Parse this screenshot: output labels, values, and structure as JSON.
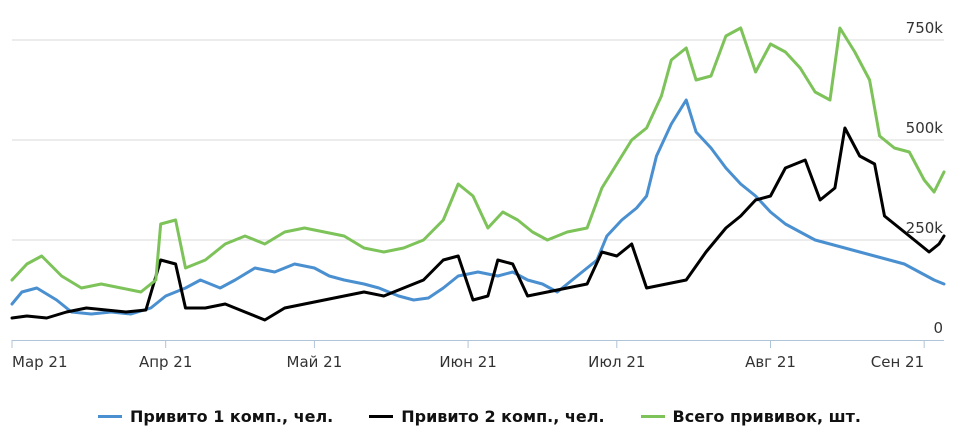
{
  "chart_data": {
    "type": "line",
    "title": "",
    "xlabel": "",
    "ylabel": "",
    "y_ticks": [
      {
        "value": 0,
        "label": "0"
      },
      {
        "value": 250000,
        "label": "250k"
      },
      {
        "value": 500000,
        "label": "500k"
      },
      {
        "value": 750000,
        "label": "750k"
      }
    ],
    "ylim": [
      0,
      800000
    ],
    "xlim": [
      "2021-03-01",
      "2021-09-05"
    ],
    "x_ticks": [
      {
        "date": "2021-03-01",
        "label": "Мар 21"
      },
      {
        "date": "2021-04-01",
        "label": "Апр 21"
      },
      {
        "date": "2021-05-01",
        "label": "Май 21"
      },
      {
        "date": "2021-06-01",
        "label": "Июн 21"
      },
      {
        "date": "2021-07-01",
        "label": "Июл 21"
      },
      {
        "date": "2021-08-01",
        "label": "Авг 21"
      },
      {
        "date": "2021-09-01",
        "label": "Сен 21"
      }
    ],
    "grid": true,
    "legend_position": "bottom",
    "series": [
      {
        "name": "Привито 1 комп., чел.",
        "color": "#4a90d0",
        "points": [
          [
            "2021-03-01",
            90000
          ],
          [
            "2021-03-03",
            120000
          ],
          [
            "2021-03-06",
            130000
          ],
          [
            "2021-03-10",
            100000
          ],
          [
            "2021-03-13",
            70000
          ],
          [
            "2021-03-17",
            65000
          ],
          [
            "2021-03-21",
            70000
          ],
          [
            "2021-03-25",
            65000
          ],
          [
            "2021-03-29",
            80000
          ],
          [
            "2021-04-01",
            110000
          ],
          [
            "2021-04-05",
            130000
          ],
          [
            "2021-04-08",
            150000
          ],
          [
            "2021-04-12",
            130000
          ],
          [
            "2021-04-15",
            150000
          ],
          [
            "2021-04-19",
            180000
          ],
          [
            "2021-04-23",
            170000
          ],
          [
            "2021-04-27",
            190000
          ],
          [
            "2021-05-01",
            180000
          ],
          [
            "2021-05-04",
            160000
          ],
          [
            "2021-05-07",
            150000
          ],
          [
            "2021-05-11",
            140000
          ],
          [
            "2021-05-14",
            130000
          ],
          [
            "2021-05-18",
            110000
          ],
          [
            "2021-05-21",
            100000
          ],
          [
            "2021-05-24",
            105000
          ],
          [
            "2021-05-27",
            130000
          ],
          [
            "2021-05-30",
            160000
          ],
          [
            "2021-06-03",
            170000
          ],
          [
            "2021-06-07",
            160000
          ],
          [
            "2021-06-10",
            170000
          ],
          [
            "2021-06-13",
            150000
          ],
          [
            "2021-06-16",
            140000
          ],
          [
            "2021-06-19",
            120000
          ],
          [
            "2021-06-22",
            150000
          ],
          [
            "2021-06-25",
            180000
          ],
          [
            "2021-06-27",
            200000
          ],
          [
            "2021-06-29",
            260000
          ],
          [
            "2021-07-02",
            300000
          ],
          [
            "2021-07-05",
            330000
          ],
          [
            "2021-07-07",
            360000
          ],
          [
            "2021-07-09",
            460000
          ],
          [
            "2021-07-12",
            540000
          ],
          [
            "2021-07-15",
            600000
          ],
          [
            "2021-07-17",
            520000
          ],
          [
            "2021-07-20",
            480000
          ],
          [
            "2021-07-23",
            430000
          ],
          [
            "2021-07-26",
            390000
          ],
          [
            "2021-07-29",
            360000
          ],
          [
            "2021-08-01",
            320000
          ],
          [
            "2021-08-04",
            290000
          ],
          [
            "2021-08-07",
            270000
          ],
          [
            "2021-08-10",
            250000
          ],
          [
            "2021-08-13",
            240000
          ],
          [
            "2021-08-16",
            230000
          ],
          [
            "2021-08-19",
            220000
          ],
          [
            "2021-08-22",
            210000
          ],
          [
            "2021-08-25",
            200000
          ],
          [
            "2021-08-28",
            190000
          ],
          [
            "2021-08-31",
            170000
          ],
          [
            "2021-09-03",
            150000
          ],
          [
            "2021-09-05",
            140000
          ]
        ]
      },
      {
        "name": "Привито 2 комп., чел.",
        "color": "#000000",
        "points": [
          [
            "2021-03-01",
            55000
          ],
          [
            "2021-03-04",
            60000
          ],
          [
            "2021-03-08",
            55000
          ],
          [
            "2021-03-12",
            70000
          ],
          [
            "2021-03-16",
            80000
          ],
          [
            "2021-03-20",
            75000
          ],
          [
            "2021-03-24",
            70000
          ],
          [
            "2021-03-28",
            75000
          ],
          [
            "2021-03-31",
            200000
          ],
          [
            "2021-04-03",
            190000
          ],
          [
            "2021-04-05",
            80000
          ],
          [
            "2021-04-09",
            80000
          ],
          [
            "2021-04-13",
            90000
          ],
          [
            "2021-04-17",
            70000
          ],
          [
            "2021-04-21",
            50000
          ],
          [
            "2021-04-25",
            80000
          ],
          [
            "2021-04-29",
            90000
          ],
          [
            "2021-05-03",
            100000
          ],
          [
            "2021-05-07",
            110000
          ],
          [
            "2021-05-11",
            120000
          ],
          [
            "2021-05-15",
            110000
          ],
          [
            "2021-05-19",
            130000
          ],
          [
            "2021-05-23",
            150000
          ],
          [
            "2021-05-27",
            200000
          ],
          [
            "2021-05-30",
            210000
          ],
          [
            "2021-06-02",
            100000
          ],
          [
            "2021-06-05",
            110000
          ],
          [
            "2021-06-07",
            200000
          ],
          [
            "2021-06-10",
            190000
          ],
          [
            "2021-06-13",
            110000
          ],
          [
            "2021-06-17",
            120000
          ],
          [
            "2021-06-21",
            130000
          ],
          [
            "2021-06-25",
            140000
          ],
          [
            "2021-06-28",
            220000
          ],
          [
            "2021-07-01",
            210000
          ],
          [
            "2021-07-04",
            240000
          ],
          [
            "2021-07-07",
            130000
          ],
          [
            "2021-07-11",
            140000
          ],
          [
            "2021-07-15",
            150000
          ],
          [
            "2021-07-19",
            220000
          ],
          [
            "2021-07-23",
            280000
          ],
          [
            "2021-07-26",
            310000
          ],
          [
            "2021-07-29",
            350000
          ],
          [
            "2021-08-01",
            360000
          ],
          [
            "2021-08-04",
            430000
          ],
          [
            "2021-08-08",
            450000
          ],
          [
            "2021-08-11",
            350000
          ],
          [
            "2021-08-14",
            380000
          ],
          [
            "2021-08-16",
            530000
          ],
          [
            "2021-08-19",
            460000
          ],
          [
            "2021-08-22",
            440000
          ],
          [
            "2021-08-24",
            310000
          ],
          [
            "2021-08-27",
            280000
          ],
          [
            "2021-08-30",
            250000
          ],
          [
            "2021-09-02",
            220000
          ],
          [
            "2021-09-04",
            240000
          ],
          [
            "2021-09-05",
            260000
          ]
        ]
      },
      {
        "name": "Всего прививок, шт.",
        "color": "#7dc35a",
        "points": [
          [
            "2021-03-01",
            150000
          ],
          [
            "2021-03-04",
            190000
          ],
          [
            "2021-03-07",
            210000
          ],
          [
            "2021-03-11",
            160000
          ],
          [
            "2021-03-15",
            130000
          ],
          [
            "2021-03-19",
            140000
          ],
          [
            "2021-03-23",
            130000
          ],
          [
            "2021-03-27",
            120000
          ],
          [
            "2021-03-30",
            150000
          ],
          [
            "2021-03-31",
            290000
          ],
          [
            "2021-04-03",
            300000
          ],
          [
            "2021-04-05",
            180000
          ],
          [
            "2021-04-09",
            200000
          ],
          [
            "2021-04-13",
            240000
          ],
          [
            "2021-04-17",
            260000
          ],
          [
            "2021-04-21",
            240000
          ],
          [
            "2021-04-25",
            270000
          ],
          [
            "2021-04-29",
            280000
          ],
          [
            "2021-05-03",
            270000
          ],
          [
            "2021-05-07",
            260000
          ],
          [
            "2021-05-11",
            230000
          ],
          [
            "2021-05-15",
            220000
          ],
          [
            "2021-05-19",
            230000
          ],
          [
            "2021-05-23",
            250000
          ],
          [
            "2021-05-27",
            300000
          ],
          [
            "2021-05-30",
            390000
          ],
          [
            "2021-06-02",
            360000
          ],
          [
            "2021-06-05",
            280000
          ],
          [
            "2021-06-08",
            320000
          ],
          [
            "2021-06-11",
            300000
          ],
          [
            "2021-06-14",
            270000
          ],
          [
            "2021-06-17",
            250000
          ],
          [
            "2021-06-21",
            270000
          ],
          [
            "2021-06-25",
            280000
          ],
          [
            "2021-06-28",
            380000
          ],
          [
            "2021-07-01",
            440000
          ],
          [
            "2021-07-04",
            500000
          ],
          [
            "2021-07-07",
            530000
          ],
          [
            "2021-07-10",
            610000
          ],
          [
            "2021-07-12",
            700000
          ],
          [
            "2021-07-15",
            730000
          ],
          [
            "2021-07-17",
            650000
          ],
          [
            "2021-07-20",
            660000
          ],
          [
            "2021-07-23",
            760000
          ],
          [
            "2021-07-26",
            780000
          ],
          [
            "2021-07-29",
            670000
          ],
          [
            "2021-08-01",
            740000
          ],
          [
            "2021-08-04",
            720000
          ],
          [
            "2021-08-07",
            680000
          ],
          [
            "2021-08-10",
            620000
          ],
          [
            "2021-08-13",
            600000
          ],
          [
            "2021-08-15",
            780000
          ],
          [
            "2021-08-18",
            720000
          ],
          [
            "2021-08-21",
            650000
          ],
          [
            "2021-08-23",
            510000
          ],
          [
            "2021-08-26",
            480000
          ],
          [
            "2021-08-29",
            470000
          ],
          [
            "2021-09-01",
            400000
          ],
          [
            "2021-09-03",
            370000
          ],
          [
            "2021-09-05",
            420000
          ]
        ]
      }
    ]
  }
}
